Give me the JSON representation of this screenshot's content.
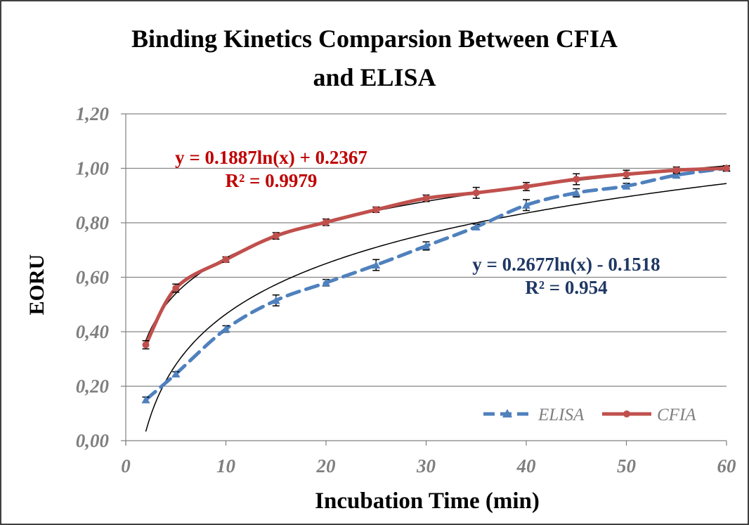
{
  "chart_data": {
    "type": "line",
    "title_lines": [
      "Binding Kinetics Comparsion Between CFIA",
      "and ELISA"
    ],
    "xlabel": "Incubation Time (min)",
    "ylabel": "EORU",
    "xlim": [
      0,
      60
    ],
    "ylim": [
      0,
      1.2
    ],
    "x_ticks": [
      "0",
      "10",
      "20",
      "30",
      "40",
      "50",
      "60"
    ],
    "y_ticks": [
      "0,00",
      "0,20",
      "0,40",
      "0,60",
      "0,80",
      "1,00",
      "1,20"
    ],
    "grid": true,
    "legend_position": "bottom-right",
    "x": [
      2,
      5,
      10,
      15,
      20,
      25,
      30,
      35,
      40,
      45,
      50,
      55,
      60
    ],
    "series": [
      {
        "name": "ELISA",
        "color": "#4f81bd",
        "marker": "triangle",
        "line_style": "dashed",
        "values": [
          0.15,
          0.245,
          0.41,
          0.515,
          0.58,
          0.645,
          0.715,
          0.785,
          0.865,
          0.91,
          0.935,
          0.975,
          1.0
        ],
        "errors": [
          0.01,
          0.008,
          0.012,
          0.02,
          0.012,
          0.02,
          0.015,
          0.01,
          0.02,
          0.015,
          0.01,
          0.01,
          0.008
        ],
        "trendline": {
          "a": 0.2677,
          "b": -0.1518,
          "equation": "y = 0.2677ln(x) - 0.1518",
          "r2": "R² = 0.954",
          "color": "#1f3864"
        }
      },
      {
        "name": "CFIA",
        "color": "#c0504d",
        "marker": "circle",
        "line_style": "solid",
        "values": [
          0.352,
          0.56,
          0.665,
          0.752,
          0.802,
          0.848,
          0.89,
          0.91,
          0.933,
          0.96,
          0.978,
          0.993,
          1.0
        ],
        "errors": [
          0.015,
          0.015,
          0.01,
          0.012,
          0.012,
          0.01,
          0.012,
          0.02,
          0.015,
          0.02,
          0.015,
          0.012,
          0.01
        ],
        "trendline": {
          "a": 0.1887,
          "b": 0.2367,
          "equation": "y = 0.1887ln(x) + 0.2367",
          "r2": "R² = 0.9979",
          "color": "#c00000"
        }
      }
    ]
  }
}
